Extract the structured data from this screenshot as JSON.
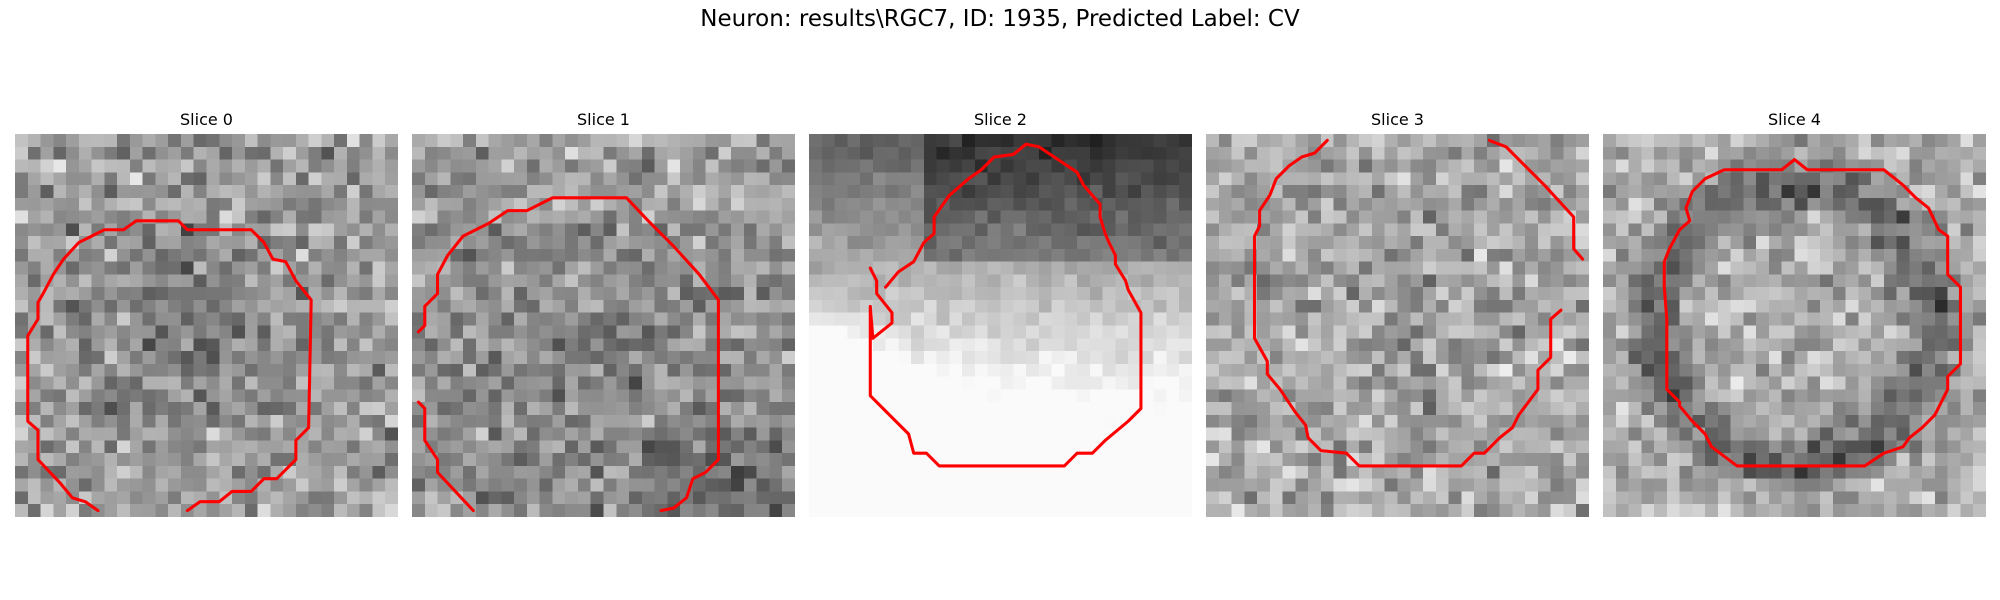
{
  "figure": {
    "title": "Neuron: results\\RGC7, ID: 1935, Predicted Label: CV"
  },
  "slices": [
    {
      "label": "Slice 0",
      "colormap": "gray",
      "contour_color": "#ff0000"
    },
    {
      "label": "Slice 1",
      "colormap": "gray",
      "contour_color": "#ff0000"
    },
    {
      "label": "Slice 2",
      "colormap": "gray",
      "contour_color": "#ff0000"
    },
    {
      "label": "Slice 3",
      "colormap": "gray",
      "contour_color": "#ff0000"
    },
    {
      "label": "Slice 4",
      "colormap": "gray",
      "contour_color": "#ff0000"
    }
  ]
}
